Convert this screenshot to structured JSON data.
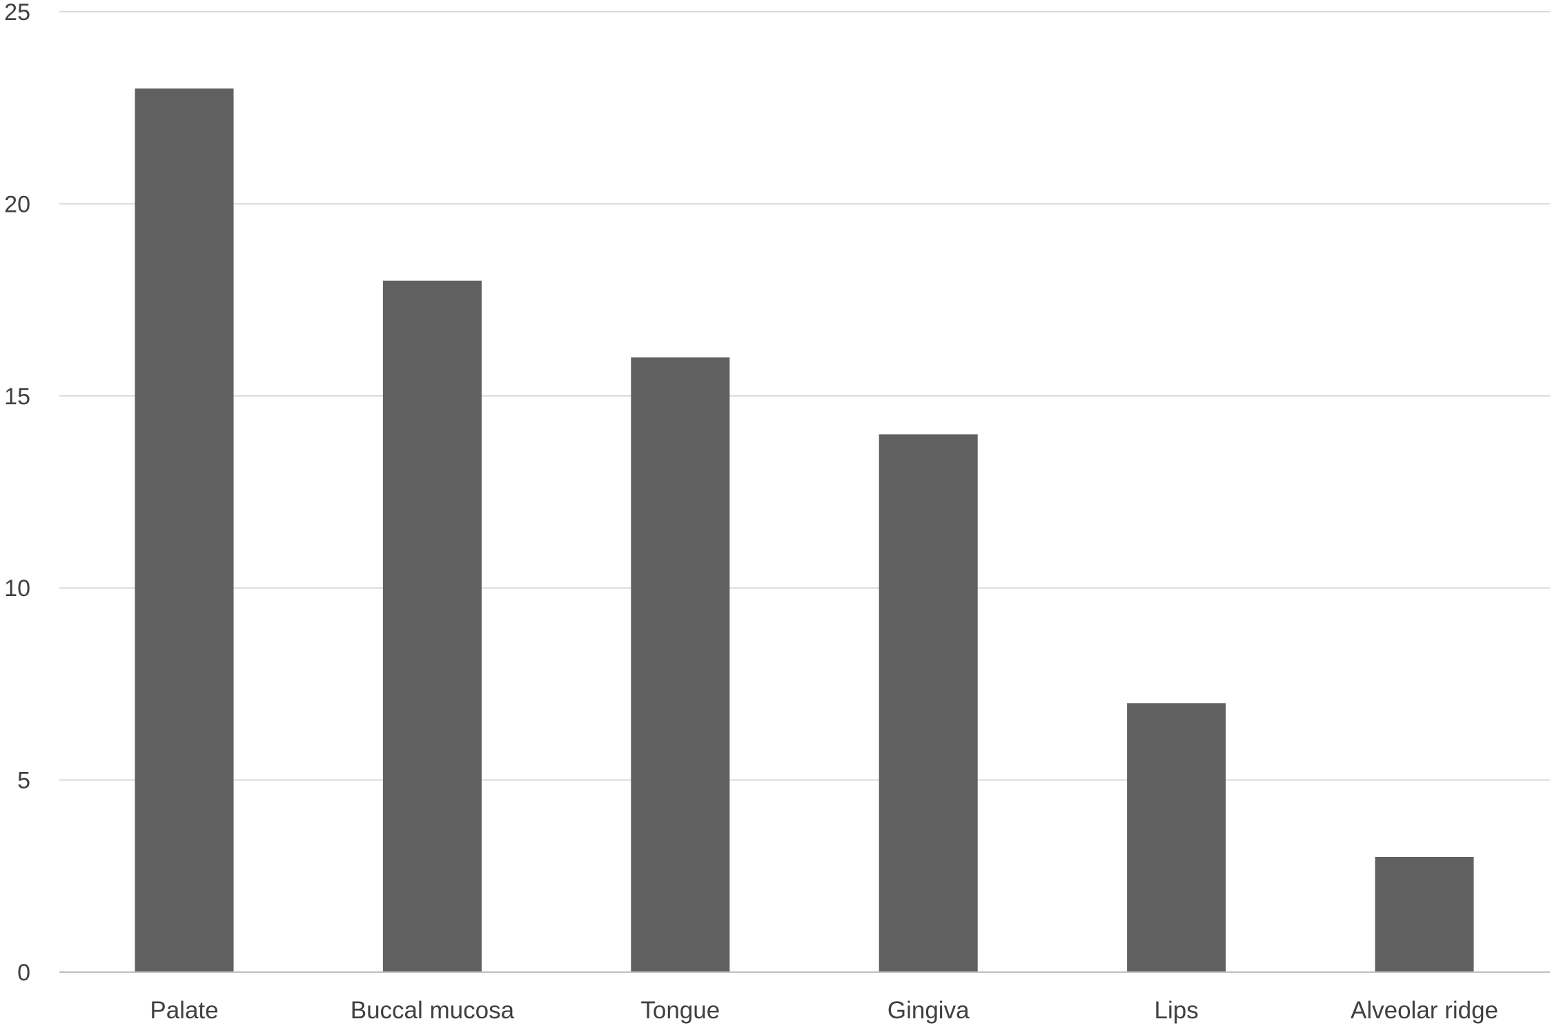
{
  "chart_data": {
    "type": "bar",
    "title": "",
    "xlabel": "",
    "ylabel": "",
    "categories": [
      "Palate",
      "Buccal mucosa",
      "Tongue",
      "Gingiva",
      "Lips",
      "Alveolar ridge"
    ],
    "values": [
      23,
      18,
      16,
      14,
      7,
      3
    ],
    "ylim": [
      0,
      25
    ],
    "yticks": [
      "0",
      "5",
      "10",
      "15",
      "20",
      "25"
    ],
    "grid": true,
    "legend": "none",
    "colors": {
      "bar": "#606060",
      "gridline": "#d9d9d9",
      "axis_line": "#bfbfbf",
      "label_text": "#404040"
    }
  }
}
